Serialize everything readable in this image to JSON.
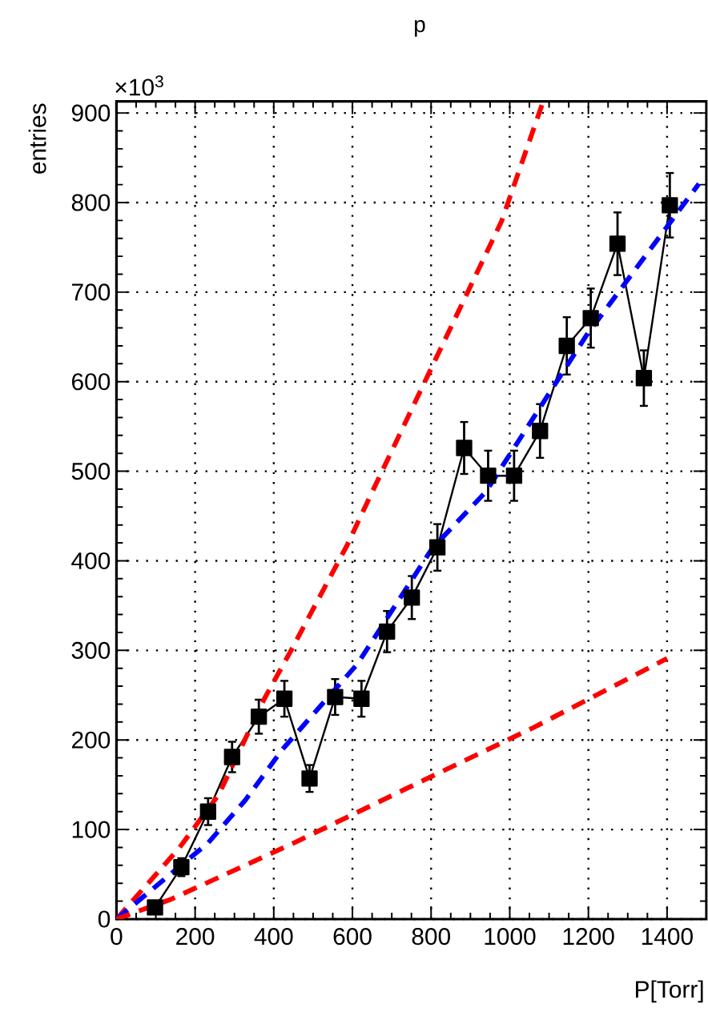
{
  "chart_data": {
    "type": "line",
    "title": "p",
    "xlabel": "P[Torr]",
    "ylabel": "entries",
    "annotations": [
      "×10$^{3}$"
    ],
    "xlim": [
      0,
      1500
    ],
    "ylim": [
      0,
      913
    ],
    "xticks": [
      0,
      200,
      400,
      600,
      800,
      1000,
      1200,
      1400
    ],
    "yticks": [
      0,
      100,
      200,
      300,
      400,
      500,
      600,
      700,
      800,
      900
    ],
    "grid": true,
    "series": [
      {
        "color": "#000000",
        "marker": "square",
        "line_style": "solid",
        "x": [
          98,
          165,
          233,
          294,
          362,
          427,
          491,
          556,
          623,
          688,
          751,
          816,
          884,
          945,
          1011,
          1077,
          1145,
          1206,
          1274,
          1341,
          1407
        ],
        "values": [
          13,
          58,
          120,
          181,
          226,
          246,
          157,
          248,
          246,
          321,
          359,
          415,
          526,
          495,
          495,
          545,
          640,
          671,
          754,
          604,
          797
        ],
        "errors": [
          5,
          10,
          15,
          17,
          19,
          20,
          15,
          20,
          20,
          23,
          24,
          26,
          29,
          28,
          28,
          30,
          32,
          33,
          35,
          31,
          36
        ]
      },
      {
        "color": "#ff0000",
        "marker": "none",
        "line_style": "dashed",
        "x": [
          0,
          159,
          260,
          376,
          444,
          586,
          647,
          979,
          1085
        ],
        "values": [
          0,
          79,
          139,
          246,
          300,
          417,
          474,
          779,
          913
        ]
      },
      {
        "color": "#0000ff",
        "marker": "none",
        "line_style": "dashed",
        "x": [
          0,
          233,
          328,
          423,
          613,
          803,
          939,
          1197,
          1481
        ],
        "values": [
          0,
          85,
          133,
          190,
          285,
          414,
          477,
          653,
          821
        ]
      },
      {
        "color": "#ff0000",
        "marker": "none",
        "line_style": "dashed",
        "x": [
          0,
          138,
          451,
          762,
          1061,
          1400
        ],
        "values": [
          0,
          22,
          85,
          151,
          214,
          291
        ]
      }
    ]
  }
}
